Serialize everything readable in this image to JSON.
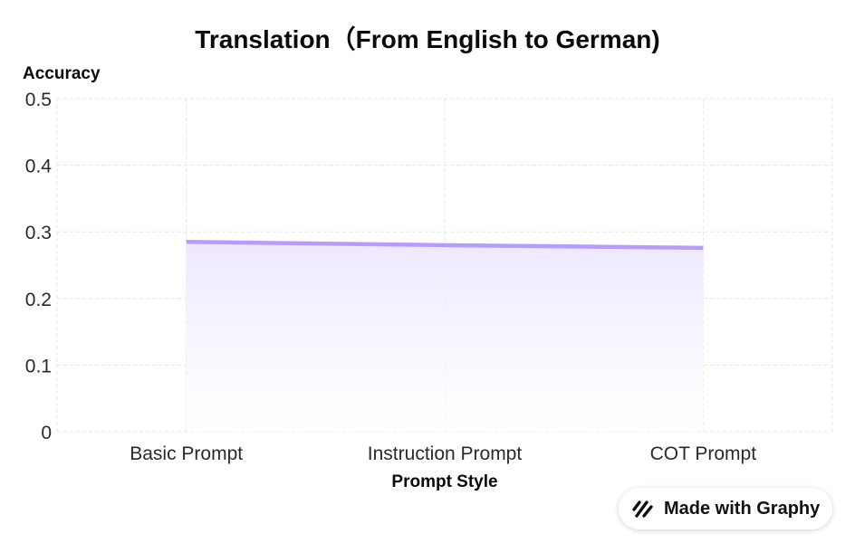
{
  "chart_data": {
    "type": "area",
    "title": "Translation（From English to German)",
    "xlabel": "Prompt Style",
    "ylabel": "Accuracy",
    "categories": [
      "Basic Prompt",
      "Instruction Prompt",
      "COT Prompt"
    ],
    "series": [
      {
        "values": [
          0.285,
          0.28,
          0.276
        ],
        "color": "#b69cff"
      }
    ],
    "ylim": [
      0,
      0.5
    ],
    "yticks": [
      "0",
      "0.1",
      "0.2",
      "0.3",
      "0.4",
      "0.5"
    ],
    "ytick_values": [
      0,
      0.1,
      0.2,
      0.3,
      0.4,
      0.5
    ],
    "grid": true,
    "legend": "none"
  },
  "badge": {
    "text": "Made with Graphy",
    "icon": "graphy-logo-icon"
  },
  "colors": {
    "line": "#b69cff",
    "area_top": "#efe9ff",
    "grid": "#e6e6e6",
    "text": "#111111"
  }
}
